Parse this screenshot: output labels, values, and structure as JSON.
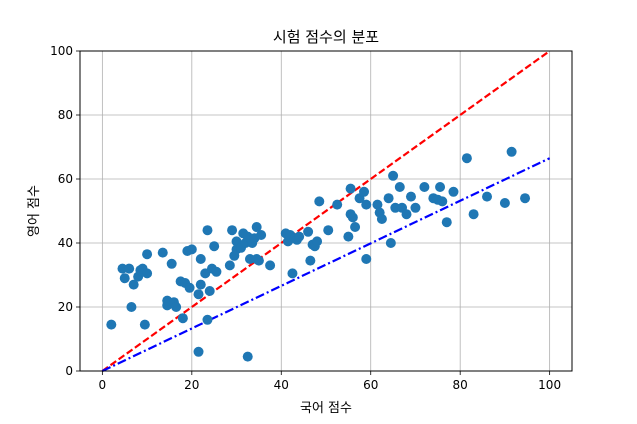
{
  "chart_data": {
    "type": "scatter",
    "title": "시험 점수의 분포",
    "xlabel": "국어 점수",
    "ylabel": "영어 점수",
    "xlim": [
      -5,
      105
    ],
    "ylim": [
      0,
      100
    ],
    "xticks": [
      0,
      20,
      40,
      60,
      80,
      100
    ],
    "yticks": [
      0,
      20,
      40,
      60,
      80,
      100
    ],
    "grid": true,
    "colors": {
      "points": "#1f77b4",
      "red_line": "#ff0000",
      "blue_line": "#0000ff"
    },
    "points": [
      [
        2,
        14.5
      ],
      [
        4.5,
        32
      ],
      [
        5,
        29
      ],
      [
        6,
        32
      ],
      [
        6.5,
        20
      ],
      [
        7,
        27
      ],
      [
        8,
        29.5
      ],
      [
        8.5,
        31.5
      ],
      [
        9,
        32
      ],
      [
        9.5,
        14.5
      ],
      [
        10,
        30.5
      ],
      [
        10,
        36.5
      ],
      [
        13.5,
        37
      ],
      [
        14.5,
        20.5
      ],
      [
        14.5,
        22
      ],
      [
        15.5,
        33.5
      ],
      [
        16,
        21.5
      ],
      [
        16.5,
        20
      ],
      [
        17.5,
        28
      ],
      [
        18,
        16.5
      ],
      [
        18.5,
        27.5
      ],
      [
        19,
        37.5
      ],
      [
        19.5,
        26
      ],
      [
        20,
        38
      ],
      [
        21.5,
        24
      ],
      [
        21.5,
        6
      ],
      [
        22,
        35
      ],
      [
        22,
        27
      ],
      [
        23,
        30.5
      ],
      [
        23.5,
        44
      ],
      [
        23.5,
        16
      ],
      [
        24,
        25
      ],
      [
        24.5,
        32
      ],
      [
        25,
        39
      ],
      [
        25.5,
        31
      ],
      [
        28.5,
        33
      ],
      [
        29,
        44
      ],
      [
        29.5,
        36
      ],
      [
        30,
        40.5
      ],
      [
        30,
        38
      ],
      [
        31,
        38.5
      ],
      [
        31.5,
        43
      ],
      [
        32,
        40
      ],
      [
        32.5,
        4.5
      ],
      [
        32.5,
        42
      ],
      [
        33,
        35
      ],
      [
        33.5,
        40
      ],
      [
        34,
        41.5
      ],
      [
        34.5,
        35
      ],
      [
        34.5,
        45
      ],
      [
        35,
        34.5
      ],
      [
        35.5,
        42.5
      ],
      [
        37.5,
        33
      ],
      [
        41,
        43
      ],
      [
        41.5,
        40.5
      ],
      [
        42,
        42.5
      ],
      [
        42.5,
        30.5
      ],
      [
        43,
        41.5
      ],
      [
        43.5,
        41
      ],
      [
        44,
        42
      ],
      [
        46,
        43.5
      ],
      [
        46.5,
        34.5
      ],
      [
        47,
        39.5
      ],
      [
        47.5,
        39
      ],
      [
        48,
        40.5
      ],
      [
        48.5,
        53
      ],
      [
        50.5,
        44
      ],
      [
        52.5,
        52
      ],
      [
        55,
        42
      ],
      [
        55.5,
        57
      ],
      [
        55.5,
        49
      ],
      [
        56,
        48
      ],
      [
        56.5,
        45
      ],
      [
        57.5,
        54
      ],
      [
        58.5,
        56
      ],
      [
        59,
        52
      ],
      [
        59,
        35
      ],
      [
        61.5,
        52
      ],
      [
        62,
        49.5
      ],
      [
        62.5,
        47.5
      ],
      [
        64,
        54
      ],
      [
        64.5,
        40
      ],
      [
        65,
        61
      ],
      [
        65.5,
        51
      ],
      [
        66.5,
        57.5
      ],
      [
        67,
        51
      ],
      [
        68,
        49
      ],
      [
        69,
        54.5
      ],
      [
        70,
        51
      ],
      [
        72,
        57.5
      ],
      [
        74,
        54
      ],
      [
        75,
        53.5
      ],
      [
        75.5,
        57.5
      ],
      [
        76,
        53
      ],
      [
        77,
        46.5
      ],
      [
        78.5,
        56
      ],
      [
        81.5,
        66.5
      ],
      [
        83,
        49
      ],
      [
        86,
        54.5
      ],
      [
        90,
        52.5
      ],
      [
        91.5,
        68.5
      ],
      [
        94.5,
        54
      ]
    ],
    "lines": [
      {
        "x": [
          0,
          100
        ],
        "y": [
          0,
          100
        ],
        "color": "red",
        "style": "dashed"
      },
      {
        "x": [
          0,
          100
        ],
        "y": [
          0,
          66.5
        ],
        "color": "blue",
        "style": "dash-dot"
      }
    ]
  }
}
